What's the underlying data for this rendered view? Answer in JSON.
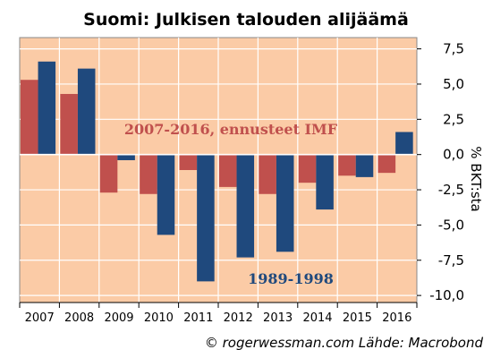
{
  "chart_data": {
    "type": "bar",
    "title": "Suomi: Julkisen talouden alijäämä",
    "ylabel": "% BKT:sta",
    "ylim": [
      -10.5,
      8.3
    ],
    "yticks": [
      "7,5",
      "5,0",
      "2,5",
      "0,0",
      "-2,5",
      "-5,0",
      "-7,5",
      "-10,0"
    ],
    "ytick_values": [
      7.5,
      5.0,
      2.5,
      0.0,
      -2.5,
      -5.0,
      -7.5,
      -10.0
    ],
    "categories": [
      "2007",
      "2008",
      "2009",
      "2010",
      "2011",
      "2012",
      "2013",
      "2014",
      "2015",
      "2016"
    ],
    "series": [
      {
        "name": "2007-2016, ennusteet IMF",
        "color": "#c0504d",
        "values": [
          5.3,
          4.3,
          -2.7,
          -2.8,
          -1.1,
          -2.3,
          -2.8,
          -2.0,
          -1.5,
          -1.3
        ]
      },
      {
        "name": "1989-1998",
        "color": "#1f497d",
        "values": [
          6.6,
          6.1,
          -0.4,
          -5.7,
          -9.0,
          -7.3,
          -6.9,
          -3.9,
          -1.6,
          1.6
        ]
      }
    ],
    "annotations": [
      "2007-2016, ennusteet IMF",
      "1989-1998"
    ],
    "grid": true,
    "background": "#fbcba6"
  },
  "source": "© rogerwessman.com Lähde: Macrobond"
}
